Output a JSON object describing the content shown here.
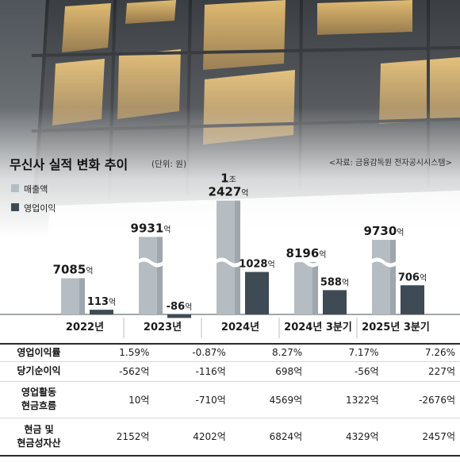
{
  "header": {
    "title": "무신사 실적 변화 추이",
    "unit": "(단위: 원)",
    "source": "<자료: 금융감독원 전자공시시스템>"
  },
  "legend": [
    {
      "label": "매출액",
      "color": "#b5bdc3"
    },
    {
      "label": "영업이익",
      "color": "#3e4b55"
    }
  ],
  "chart_data": {
    "type": "bar",
    "categories": [
      "2022년",
      "2023년",
      "2024년",
      "2024년 3분기",
      "2025년 3분기"
    ],
    "series": [
      {
        "name": "매출액",
        "values": [
          7085,
          9931,
          12427,
          8196,
          9730
        ],
        "labels": [
          "7085억",
          "9931억",
          "1조\n2427억",
          "8196억",
          "9730억"
        ],
        "color": "#b5bdc3"
      },
      {
        "name": "영업이익",
        "values": [
          113,
          -86,
          1028,
          588,
          706
        ],
        "labels": [
          "113억",
          "-86억",
          "1028억",
          "588억",
          "706억"
        ],
        "color": "#3e4b55"
      }
    ],
    "broken_axis": true
  },
  "table": {
    "rows": [
      {
        "header": "영업이익률",
        "values": [
          "1.59%",
          "-0.87%",
          "8.27%",
          "7.17%",
          "7.26%"
        ]
      },
      {
        "header": "당기순이익",
        "values": [
          "-562억",
          "-116억",
          "698억",
          "-56억",
          "227억"
        ]
      },
      {
        "header": "영업활동\n현금흐름",
        "values": [
          "10억",
          "-710억",
          "4569억",
          "1322억",
          "-2676억"
        ]
      },
      {
        "header": "현금 및\n현금성자산",
        "values": [
          "2152억",
          "4202억",
          "6824억",
          "4329억",
          "2457억"
        ]
      }
    ]
  }
}
